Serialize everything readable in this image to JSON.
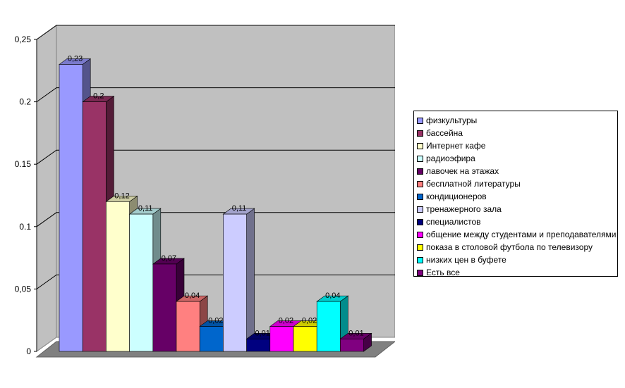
{
  "chart_data": {
    "type": "bar",
    "title": "",
    "xlabel": "",
    "ylabel": "",
    "ylim": [
      0,
      0.25
    ],
    "yticks": [
      "0",
      "0,05",
      "0.1",
      "0.15",
      "0.2",
      "0,25"
    ],
    "grid": true,
    "legend_position": "right",
    "series": [
      {
        "name": "физкультуры",
        "value": 0.23,
        "label": "0,23",
        "color": "#9999ff"
      },
      {
        "name": "бассейна",
        "value": 0.2,
        "label": "0,2",
        "color": "#993366"
      },
      {
        "name": "Интернет кафе",
        "value": 0.12,
        "label": "0,12",
        "color": "#ffffcc"
      },
      {
        "name": "радиоэфира",
        "value": 0.11,
        "label": "0,11",
        "color": "#ccffff"
      },
      {
        "name": "лавочек на этажах",
        "value": 0.07,
        "label": "0,07",
        "color": "#660066"
      },
      {
        "name": "бесплатной литературы",
        "value": 0.04,
        "label": "0,04",
        "color": "#ff8080"
      },
      {
        "name": "кондиционеров",
        "value": 0.02,
        "label": "0,02",
        "color": "#0066cc"
      },
      {
        "name": "тренажерного зала",
        "value": 0.11,
        "label": "0,11",
        "color": "#ccccff"
      },
      {
        "name": "специалистов",
        "value": 0.01,
        "label": "0,01",
        "color": "#000080"
      },
      {
        "name": "общение между студентами и преподавателями",
        "value": 0.02,
        "label": "0,02",
        "color": "#ff00ff"
      },
      {
        "name": "показа в столовой футбола по телевизору",
        "value": 0.02,
        "label": "0,02",
        "color": "#ffff00"
      },
      {
        "name": "низких цен в буфете",
        "value": 0.04,
        "label": "0,04",
        "color": "#00ffff"
      },
      {
        "name": "Есть все",
        "value": 0.01,
        "label": "0,01",
        "color": "#800080"
      }
    ]
  }
}
